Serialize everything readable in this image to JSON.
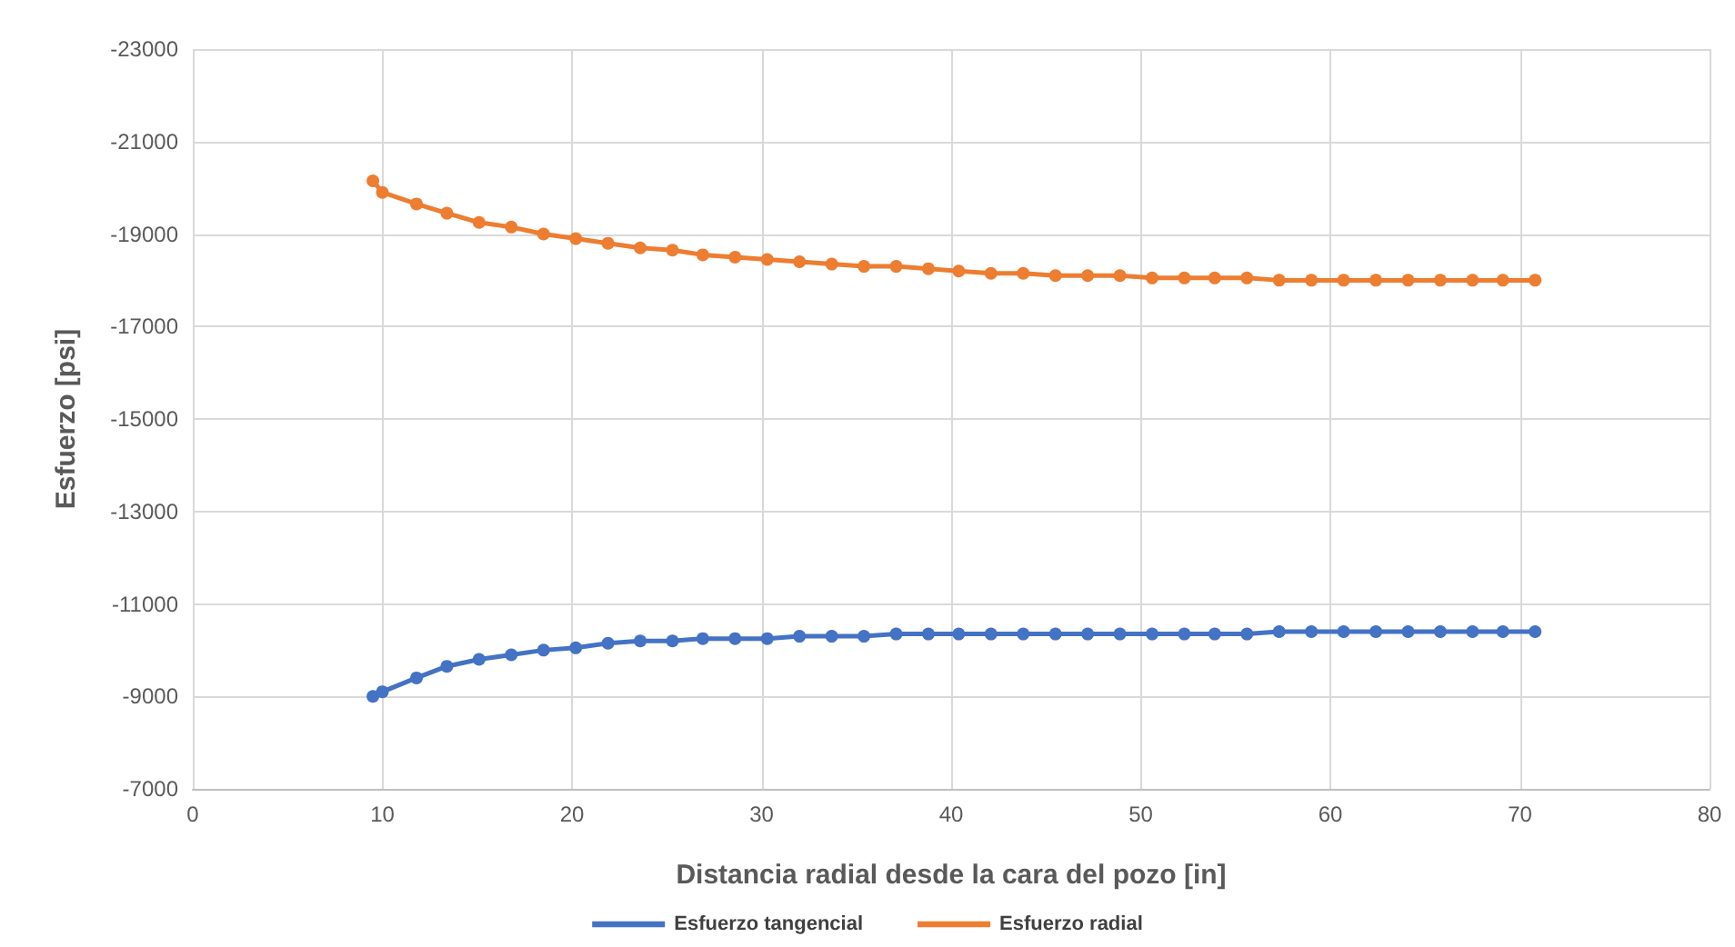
{
  "chart_data": {
    "type": "line",
    "xlabel": "Distancia radial desde la cara del pozo [in]",
    "ylabel": "Esfuerzo [psi]",
    "x": [
      9.5,
      10,
      11.8,
      13.4,
      15.1,
      16.8,
      18.5,
      20.2,
      21.9,
      23.6,
      25.3,
      26.9,
      28.6,
      30.3,
      32.0,
      33.7,
      35.4,
      37.1,
      38.8,
      40.4,
      42.1,
      43.8,
      45.5,
      47.2,
      48.9,
      50.6,
      52.3,
      53.9,
      55.6,
      57.3,
      59.0,
      60.7,
      62.4,
      64.1,
      65.8,
      67.5,
      69.1,
      70.8
    ],
    "series": [
      {
        "name": "Esfuerzo tangencial",
        "color": "#4472c4",
        "values": [
          -9000,
          -9100,
          -9400,
          -9650,
          -9800,
          -9900,
          -10000,
          -10050,
          -10150,
          -10200,
          -10200,
          -10250,
          -10250,
          -10250,
          -10300,
          -10300,
          -10300,
          -10350,
          -10350,
          -10350,
          -10350,
          -10350,
          -10350,
          -10350,
          -10350,
          -10350,
          -10350,
          -10350,
          -10350,
          -10400,
          -10400,
          -10400,
          -10400,
          -10400,
          -10400,
          -10400,
          -10400,
          -10400
        ]
      },
      {
        "name": "Esfuerzo radial",
        "color": "#ed7d31",
        "values": [
          -20150,
          -19900,
          -19650,
          -19450,
          -19250,
          -19150,
          -19000,
          -18900,
          -18800,
          -18700,
          -18650,
          -18550,
          -18500,
          -18450,
          -18400,
          -18350,
          -18300,
          -18300,
          -18250,
          -18200,
          -18150,
          -18150,
          -18100,
          -18100,
          -18100,
          -18050,
          -18050,
          -18050,
          -18050,
          -18000,
          -18000,
          -18000,
          -18000,
          -18000,
          -18000,
          -18000,
          -18000,
          -18000
        ]
      }
    ],
    "xlim": [
      0,
      80
    ],
    "xticks": [
      0,
      10,
      20,
      30,
      40,
      50,
      60,
      70,
      80
    ],
    "ylim": [
      -7000,
      -23000
    ],
    "yticks": [
      -7000,
      -9000,
      -11000,
      -13000,
      -15000,
      -17000,
      -19000,
      -21000,
      -23000
    ],
    "grid": true,
    "legend": "bottom",
    "marker": "circle",
    "line_style": "solid"
  }
}
